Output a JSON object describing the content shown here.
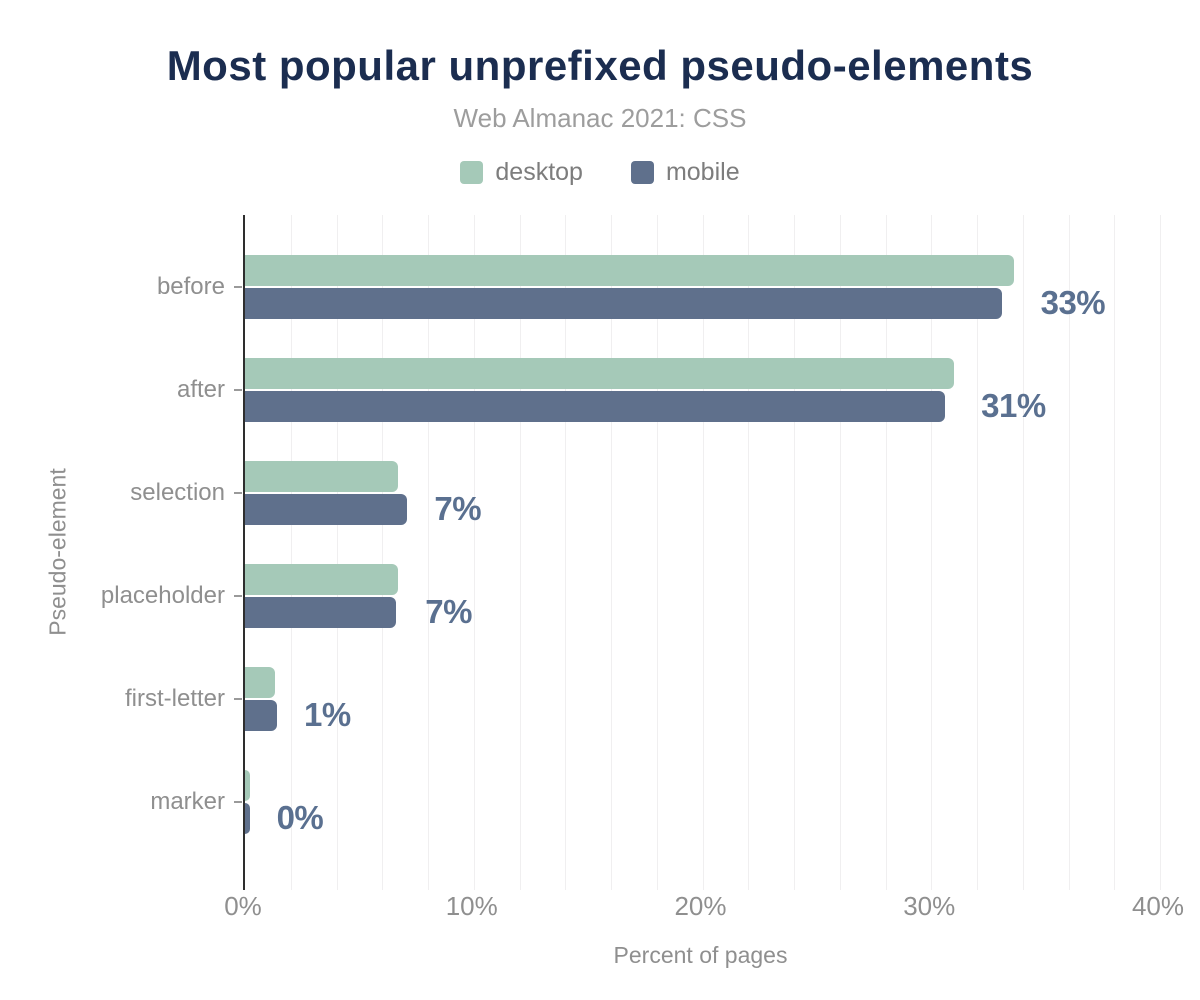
{
  "chart_data": {
    "type": "bar",
    "orientation": "horizontal",
    "title": "Most popular unprefixed pseudo-elements",
    "subtitle": "Web Almanac 2021: CSS",
    "xlabel": "Percent of pages",
    "ylabel": "Pseudo-element",
    "categories": [
      "before",
      "after",
      "selection",
      "placeholder",
      "first-letter",
      "marker"
    ],
    "series": [
      {
        "name": "desktop",
        "color": "#a5c9b8",
        "values": [
          33.6,
          31.0,
          6.7,
          6.7,
          1.3,
          0.2
        ]
      },
      {
        "name": "mobile",
        "color": "#5f708c",
        "values": [
          33.1,
          30.6,
          7.1,
          6.6,
          1.4,
          0.2
        ]
      }
    ],
    "value_labels": [
      "33%",
      "31%",
      "7%",
      "7%",
      "1%",
      "0%"
    ],
    "x_ticks": [
      {
        "label": "0%",
        "value": 0
      },
      {
        "label": "10%",
        "value": 10
      },
      {
        "label": "20%",
        "value": 20
      },
      {
        "label": "30%",
        "value": 30
      },
      {
        "label": "40%",
        "value": 40
      }
    ],
    "xlim": [
      0,
      40
    ],
    "grid_step": 2,
    "grid": true,
    "legend_position": "top"
  },
  "colors": {
    "title": "#1b2d50",
    "subtitle": "#9d9d9d",
    "axis_text": "#8f8f8f",
    "value_label": "#5a7090",
    "axis_line": "#2e2e2e",
    "gridline": "#f0eff0",
    "desktop": "#a5c9b8",
    "mobile": "#5f708c",
    "background": "#ffffff"
  }
}
